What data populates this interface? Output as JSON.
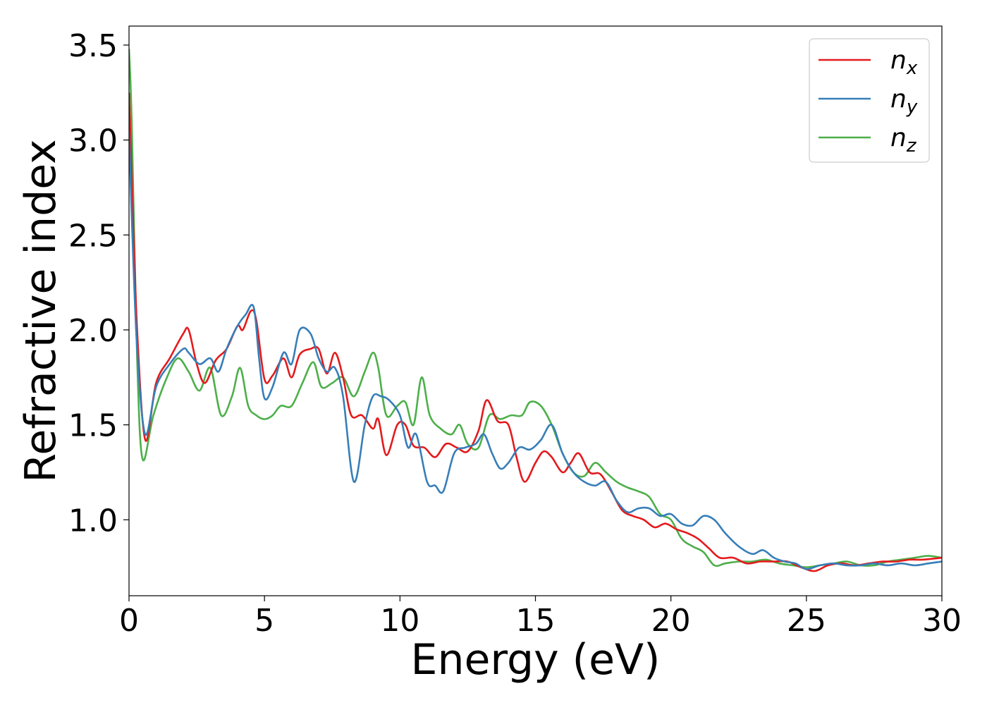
{
  "chart_data": {
    "type": "line",
    "title": "",
    "xlabel": "Energy (eV)",
    "ylabel": "Refractive index",
    "xlim": [
      0,
      30
    ],
    "ylim": [
      0.6,
      3.6
    ],
    "xticks": [
      0,
      5,
      10,
      15,
      20,
      25,
      30
    ],
    "yticks": [
      1.0,
      1.5,
      2.0,
      2.5,
      3.0,
      3.5
    ],
    "grid": false,
    "legend": "top-right",
    "series": [
      {
        "name": "n",
        "subscript": "x",
        "color": "#e41a1c",
        "x": [
          0,
          0.1,
          0.3,
          0.6,
          1.0,
          1.5,
          2.0,
          2.2,
          2.5,
          2.8,
          3.2,
          3.6,
          4.0,
          4.2,
          4.5,
          4.7,
          5.0,
          5.3,
          5.7,
          6.0,
          6.3,
          6.7,
          7.0,
          7.3,
          7.6,
          7.9,
          8.2,
          8.6,
          9.0,
          9.2,
          9.5,
          9.9,
          10.2,
          10.5,
          10.9,
          11.3,
          11.7,
          12.1,
          12.5,
          12.9,
          13.2,
          13.6,
          14.0,
          14.3,
          14.6,
          15.0,
          15.3,
          15.6,
          16.0,
          16.3,
          16.6,
          17.0,
          17.4,
          17.8,
          18.2,
          18.6,
          19.0,
          19.4,
          19.8,
          20.2,
          20.6,
          21.0,
          21.4,
          21.8,
          22.3,
          22.8,
          23.3,
          23.8,
          24.3,
          24.8,
          25.3,
          25.8,
          26.3,
          26.8,
          27.3,
          27.8,
          28.3,
          28.8,
          29.3,
          30.0
        ],
        "values": [
          3.25,
          2.8,
          2.0,
          1.42,
          1.72,
          1.85,
          1.98,
          2.0,
          1.82,
          1.72,
          1.84,
          1.9,
          2.02,
          2.0,
          2.1,
          2.05,
          1.74,
          1.76,
          1.85,
          1.75,
          1.87,
          1.9,
          1.9,
          1.77,
          1.88,
          1.75,
          1.55,
          1.55,
          1.48,
          1.53,
          1.34,
          1.5,
          1.5,
          1.39,
          1.38,
          1.33,
          1.4,
          1.38,
          1.36,
          1.47,
          1.63,
          1.52,
          1.5,
          1.33,
          1.2,
          1.3,
          1.36,
          1.33,
          1.25,
          1.3,
          1.35,
          1.25,
          1.24,
          1.15,
          1.05,
          1.02,
          1.0,
          0.96,
          0.98,
          0.95,
          0.93,
          0.9,
          0.85,
          0.8,
          0.8,
          0.77,
          0.78,
          0.78,
          0.78,
          0.75,
          0.73,
          0.76,
          0.77,
          0.76,
          0.77,
          0.78,
          0.78,
          0.79,
          0.79,
          0.8
        ]
      },
      {
        "name": "n",
        "subscript": "y",
        "color": "#377eb8",
        "x": [
          0,
          0.1,
          0.3,
          0.6,
          1.0,
          1.5,
          2.0,
          2.2,
          2.6,
          3.0,
          3.3,
          3.6,
          4.0,
          4.3,
          4.6,
          4.8,
          5.0,
          5.3,
          5.7,
          6.0,
          6.3,
          6.7,
          7.0,
          7.3,
          7.6,
          7.9,
          8.3,
          8.7,
          9.0,
          9.3,
          9.6,
          10.0,
          10.3,
          10.6,
          11.0,
          11.3,
          11.6,
          12.0,
          12.4,
          12.8,
          13.1,
          13.4,
          13.7,
          14.0,
          14.4,
          14.8,
          15.2,
          15.6,
          16.0,
          16.4,
          16.8,
          17.2,
          17.6,
          18.0,
          18.4,
          18.8,
          19.2,
          19.6,
          20.0,
          20.4,
          20.8,
          21.2,
          21.6,
          22.0,
          22.5,
          23.0,
          23.4,
          23.8,
          24.2,
          24.6,
          25.0,
          25.5,
          26.0,
          26.5,
          27.0,
          27.5,
          28.0,
          28.5,
          29.0,
          29.5,
          30.0
        ],
        "values": [
          3.05,
          2.6,
          1.9,
          1.45,
          1.7,
          1.82,
          1.9,
          1.88,
          1.82,
          1.85,
          1.78,
          1.9,
          2.02,
          2.08,
          2.12,
          1.85,
          1.64,
          1.7,
          1.88,
          1.82,
          2.0,
          1.98,
          1.85,
          1.78,
          1.8,
          1.65,
          1.2,
          1.5,
          1.65,
          1.65,
          1.63,
          1.55,
          1.38,
          1.45,
          1.2,
          1.18,
          1.15,
          1.35,
          1.38,
          1.4,
          1.45,
          1.35,
          1.27,
          1.3,
          1.38,
          1.37,
          1.42,
          1.5,
          1.35,
          1.25,
          1.2,
          1.18,
          1.2,
          1.1,
          1.04,
          1.06,
          1.06,
          1.02,
          1.03,
          0.98,
          0.97,
          1.02,
          1.0,
          0.93,
          0.86,
          0.82,
          0.84,
          0.8,
          0.78,
          0.77,
          0.74,
          0.76,
          0.77,
          0.76,
          0.76,
          0.77,
          0.76,
          0.77,
          0.76,
          0.77,
          0.78
        ]
      },
      {
        "name": "n",
        "subscript": "z",
        "color": "#4daf4a",
        "x": [
          0,
          0.1,
          0.3,
          0.5,
          0.9,
          1.4,
          1.8,
          2.2,
          2.6,
          3.0,
          3.4,
          3.8,
          4.1,
          4.4,
          4.7,
          5.0,
          5.3,
          5.6,
          6.0,
          6.4,
          6.8,
          7.1,
          7.5,
          7.9,
          8.3,
          8.7,
          9.0,
          9.2,
          9.5,
          9.9,
          10.2,
          10.5,
          10.8,
          11.1,
          11.5,
          11.9,
          12.2,
          12.5,
          12.9,
          13.3,
          13.7,
          14.1,
          14.5,
          14.8,
          15.2,
          15.6,
          16.0,
          16.4,
          16.8,
          17.2,
          17.6,
          18.0,
          18.4,
          18.8,
          19.2,
          19.6,
          20.0,
          20.4,
          20.8,
          21.2,
          21.6,
          22.0,
          22.5,
          23.0,
          23.5,
          24.0,
          24.5,
          25.0,
          25.5,
          26.0,
          26.5,
          27.0,
          27.5,
          28.0,
          28.5,
          29.0,
          29.5,
          30.0
        ],
        "values": [
          3.48,
          3.1,
          1.85,
          1.32,
          1.55,
          1.75,
          1.85,
          1.78,
          1.68,
          1.8,
          1.55,
          1.65,
          1.8,
          1.6,
          1.55,
          1.53,
          1.55,
          1.6,
          1.6,
          1.72,
          1.83,
          1.7,
          1.72,
          1.75,
          1.65,
          1.78,
          1.88,
          1.8,
          1.55,
          1.6,
          1.62,
          1.5,
          1.75,
          1.55,
          1.48,
          1.45,
          1.5,
          1.4,
          1.38,
          1.55,
          1.53,
          1.55,
          1.55,
          1.62,
          1.6,
          1.5,
          1.35,
          1.25,
          1.23,
          1.3,
          1.25,
          1.2,
          1.17,
          1.15,
          1.12,
          1.03,
          1.0,
          0.9,
          0.86,
          0.83,
          0.76,
          0.77,
          0.78,
          0.78,
          0.79,
          0.77,
          0.76,
          0.75,
          0.76,
          0.77,
          0.78,
          0.76,
          0.76,
          0.78,
          0.79,
          0.8,
          0.81,
          0.8
        ]
      }
    ]
  }
}
